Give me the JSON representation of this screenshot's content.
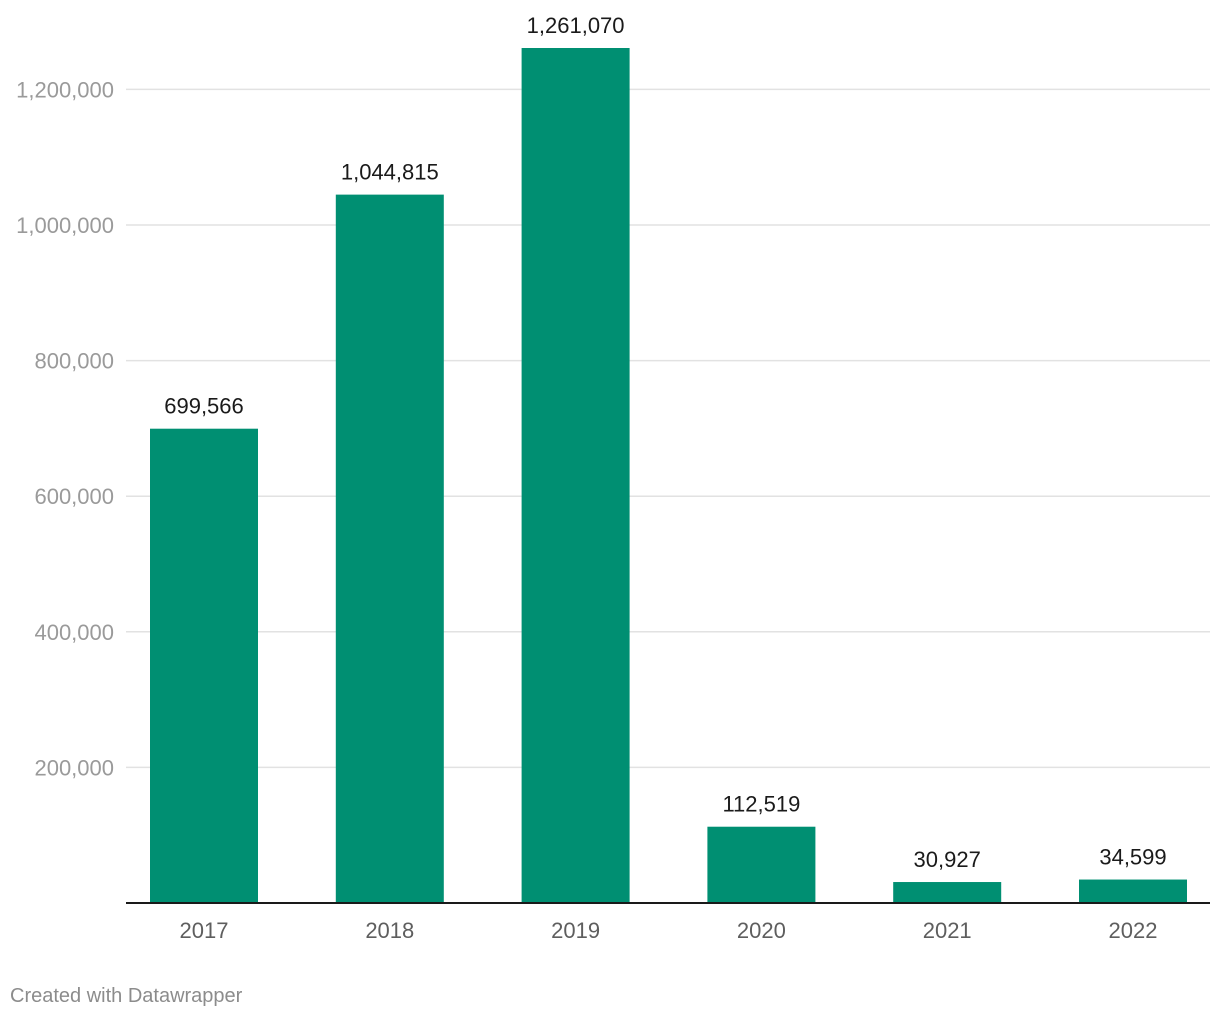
{
  "chart_data": {
    "type": "bar",
    "categories": [
      "2017",
      "2018",
      "2019",
      "2020",
      "2021",
      "2022"
    ],
    "values": [
      699566,
      1044815,
      1261070,
      112519,
      30927,
      34599
    ],
    "value_labels": [
      "699,566",
      "1,044,815",
      "1,261,070",
      "112,519",
      "30,927",
      "34,599"
    ],
    "y_ticks": [
      200000,
      400000,
      600000,
      800000,
      1000000,
      1200000
    ],
    "y_tick_labels": [
      "200,000",
      "400,000",
      "600,000",
      "800,000",
      "1,000,000",
      "1,200,000"
    ],
    "ylim": [
      0,
      1261070
    ],
    "grid": true,
    "title": "",
    "xlabel": "",
    "ylabel": "",
    "bar_color": "#008f72",
    "grid_color": "#e2e2e2",
    "axis_color": "#1a1a1a",
    "tick_label_color": "#9a9a9a",
    "category_label_color": "#5e5e5e",
    "value_label_color": "#1a1a1a"
  },
  "footer": {
    "credit": "Created with Datawrapper"
  }
}
